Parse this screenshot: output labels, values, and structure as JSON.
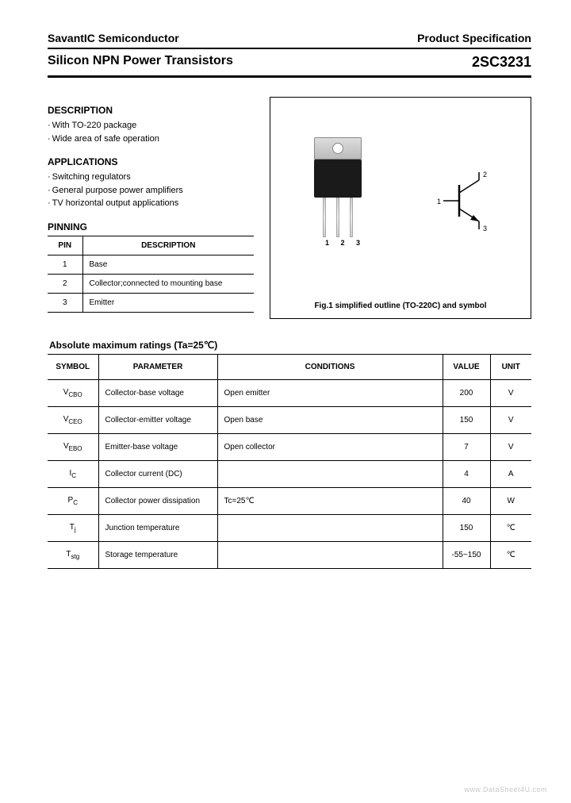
{
  "header": {
    "company": "SavantIC Semiconductor",
    "doc_type": "Product Specification",
    "product_title": "Silicon NPN Power Transistors",
    "part_number": "2SC3231"
  },
  "description": {
    "heading": "DESCRIPTION",
    "items": [
      "With TO-220 package",
      "Wide area of safe operation"
    ]
  },
  "applications": {
    "heading": "APPLICATIONS",
    "items": [
      "Switching regulators",
      "General purpose power amplifiers",
      "TV horizontal output applications"
    ]
  },
  "pinning": {
    "heading": "PINNING",
    "columns": [
      "PIN",
      "DESCRIPTION"
    ],
    "rows": [
      {
        "pin": "1",
        "desc": "Base"
      },
      {
        "pin": "2",
        "desc": "Collector;connected to mounting base"
      },
      {
        "pin": "3",
        "desc": "Emitter"
      }
    ]
  },
  "figure": {
    "lead_labels": "1 2 3",
    "sym_1": "1",
    "sym_2": "2",
    "sym_3": "3",
    "caption": "Fig.1 simplified outline (TO-220C) and symbol"
  },
  "ratings": {
    "title": "Absolute maximum ratings (Ta=25℃)",
    "columns": [
      "SYMBOL",
      "PARAMETER",
      "CONDITIONS",
      "VALUE",
      "UNIT"
    ],
    "rows": [
      {
        "sym": "V",
        "sub": "CBO",
        "param": "Collector-base voltage",
        "cond": "Open emitter",
        "value": "200",
        "unit": "V"
      },
      {
        "sym": "V",
        "sub": "CEO",
        "param": "Collector-emitter voltage",
        "cond": "Open base",
        "value": "150",
        "unit": "V"
      },
      {
        "sym": "V",
        "sub": "EBO",
        "param": "Emitter-base voltage",
        "cond": "Open collector",
        "value": "7",
        "unit": "V"
      },
      {
        "sym": "I",
        "sub": "C",
        "param": "Collector current (DC)",
        "cond": "",
        "value": "4",
        "unit": "A"
      },
      {
        "sym": "P",
        "sub": "C",
        "param": "Collector power dissipation",
        "cond": "Tc=25℃",
        "value": "40",
        "unit": "W"
      },
      {
        "sym": "T",
        "sub": "j",
        "param": "Junction temperature",
        "cond": "",
        "value": "150",
        "unit": "℃"
      },
      {
        "sym": "T",
        "sub": "stg",
        "param": "Storage temperature",
        "cond": "",
        "value": "-55~150",
        "unit": "℃"
      }
    ]
  },
  "watermark": "www.DataSheet4U.com"
}
